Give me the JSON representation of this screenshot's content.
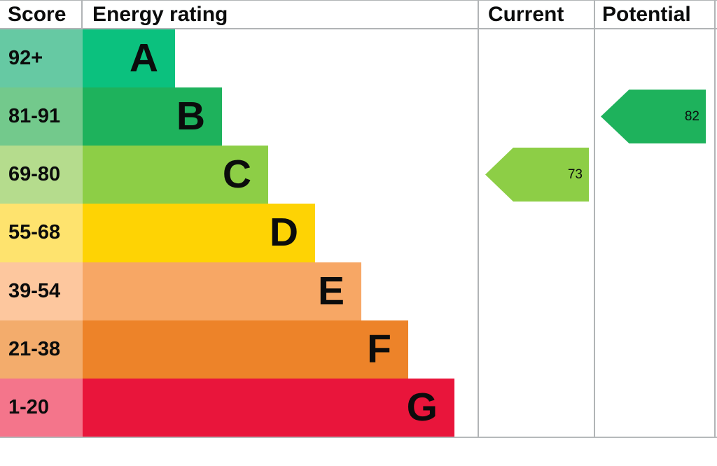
{
  "header": {
    "score": "Score",
    "energy_rating": "Energy rating",
    "current": "Current",
    "potential": "Potential"
  },
  "chart_data": {
    "type": "epc-energy-rating-stepped-bar",
    "title": "Energy rating",
    "columns": [
      "Score",
      "Energy rating",
      "Current",
      "Potential"
    ],
    "bands": [
      {
        "letter": "A",
        "score_range": "92+",
        "bar_color": "#0bc17e",
        "score_bg": "#66c9a3"
      },
      {
        "letter": "B",
        "score_range": "81-91",
        "bar_color": "#1eb25c",
        "score_bg": "#73c98c"
      },
      {
        "letter": "C",
        "score_range": "69-80",
        "bar_color": "#8dce46",
        "score_bg": "#b5dc8d"
      },
      {
        "letter": "D",
        "score_range": "55-68",
        "bar_color": "#fed304",
        "score_bg": "#fee36e"
      },
      {
        "letter": "E",
        "score_range": "39-54",
        "bar_color": "#f7a765",
        "score_bg": "#fdc79e"
      },
      {
        "letter": "F",
        "score_range": "21-38",
        "bar_color": "#ed8329",
        "score_bg": "#f3ac6c"
      },
      {
        "letter": "G",
        "score_range": "1-20",
        "bar_color": "#e9153b",
        "score_bg": "#f4758b"
      }
    ],
    "current": {
      "value": "73",
      "band": "C",
      "color": "#8dce46"
    },
    "potential": {
      "value": "82",
      "band": "B",
      "color": "#1eb25c"
    }
  },
  "colors": {
    "border": "#b1b4b6",
    "bottom_rule": "#b6b9bb",
    "text": "#0b0c0c"
  }
}
